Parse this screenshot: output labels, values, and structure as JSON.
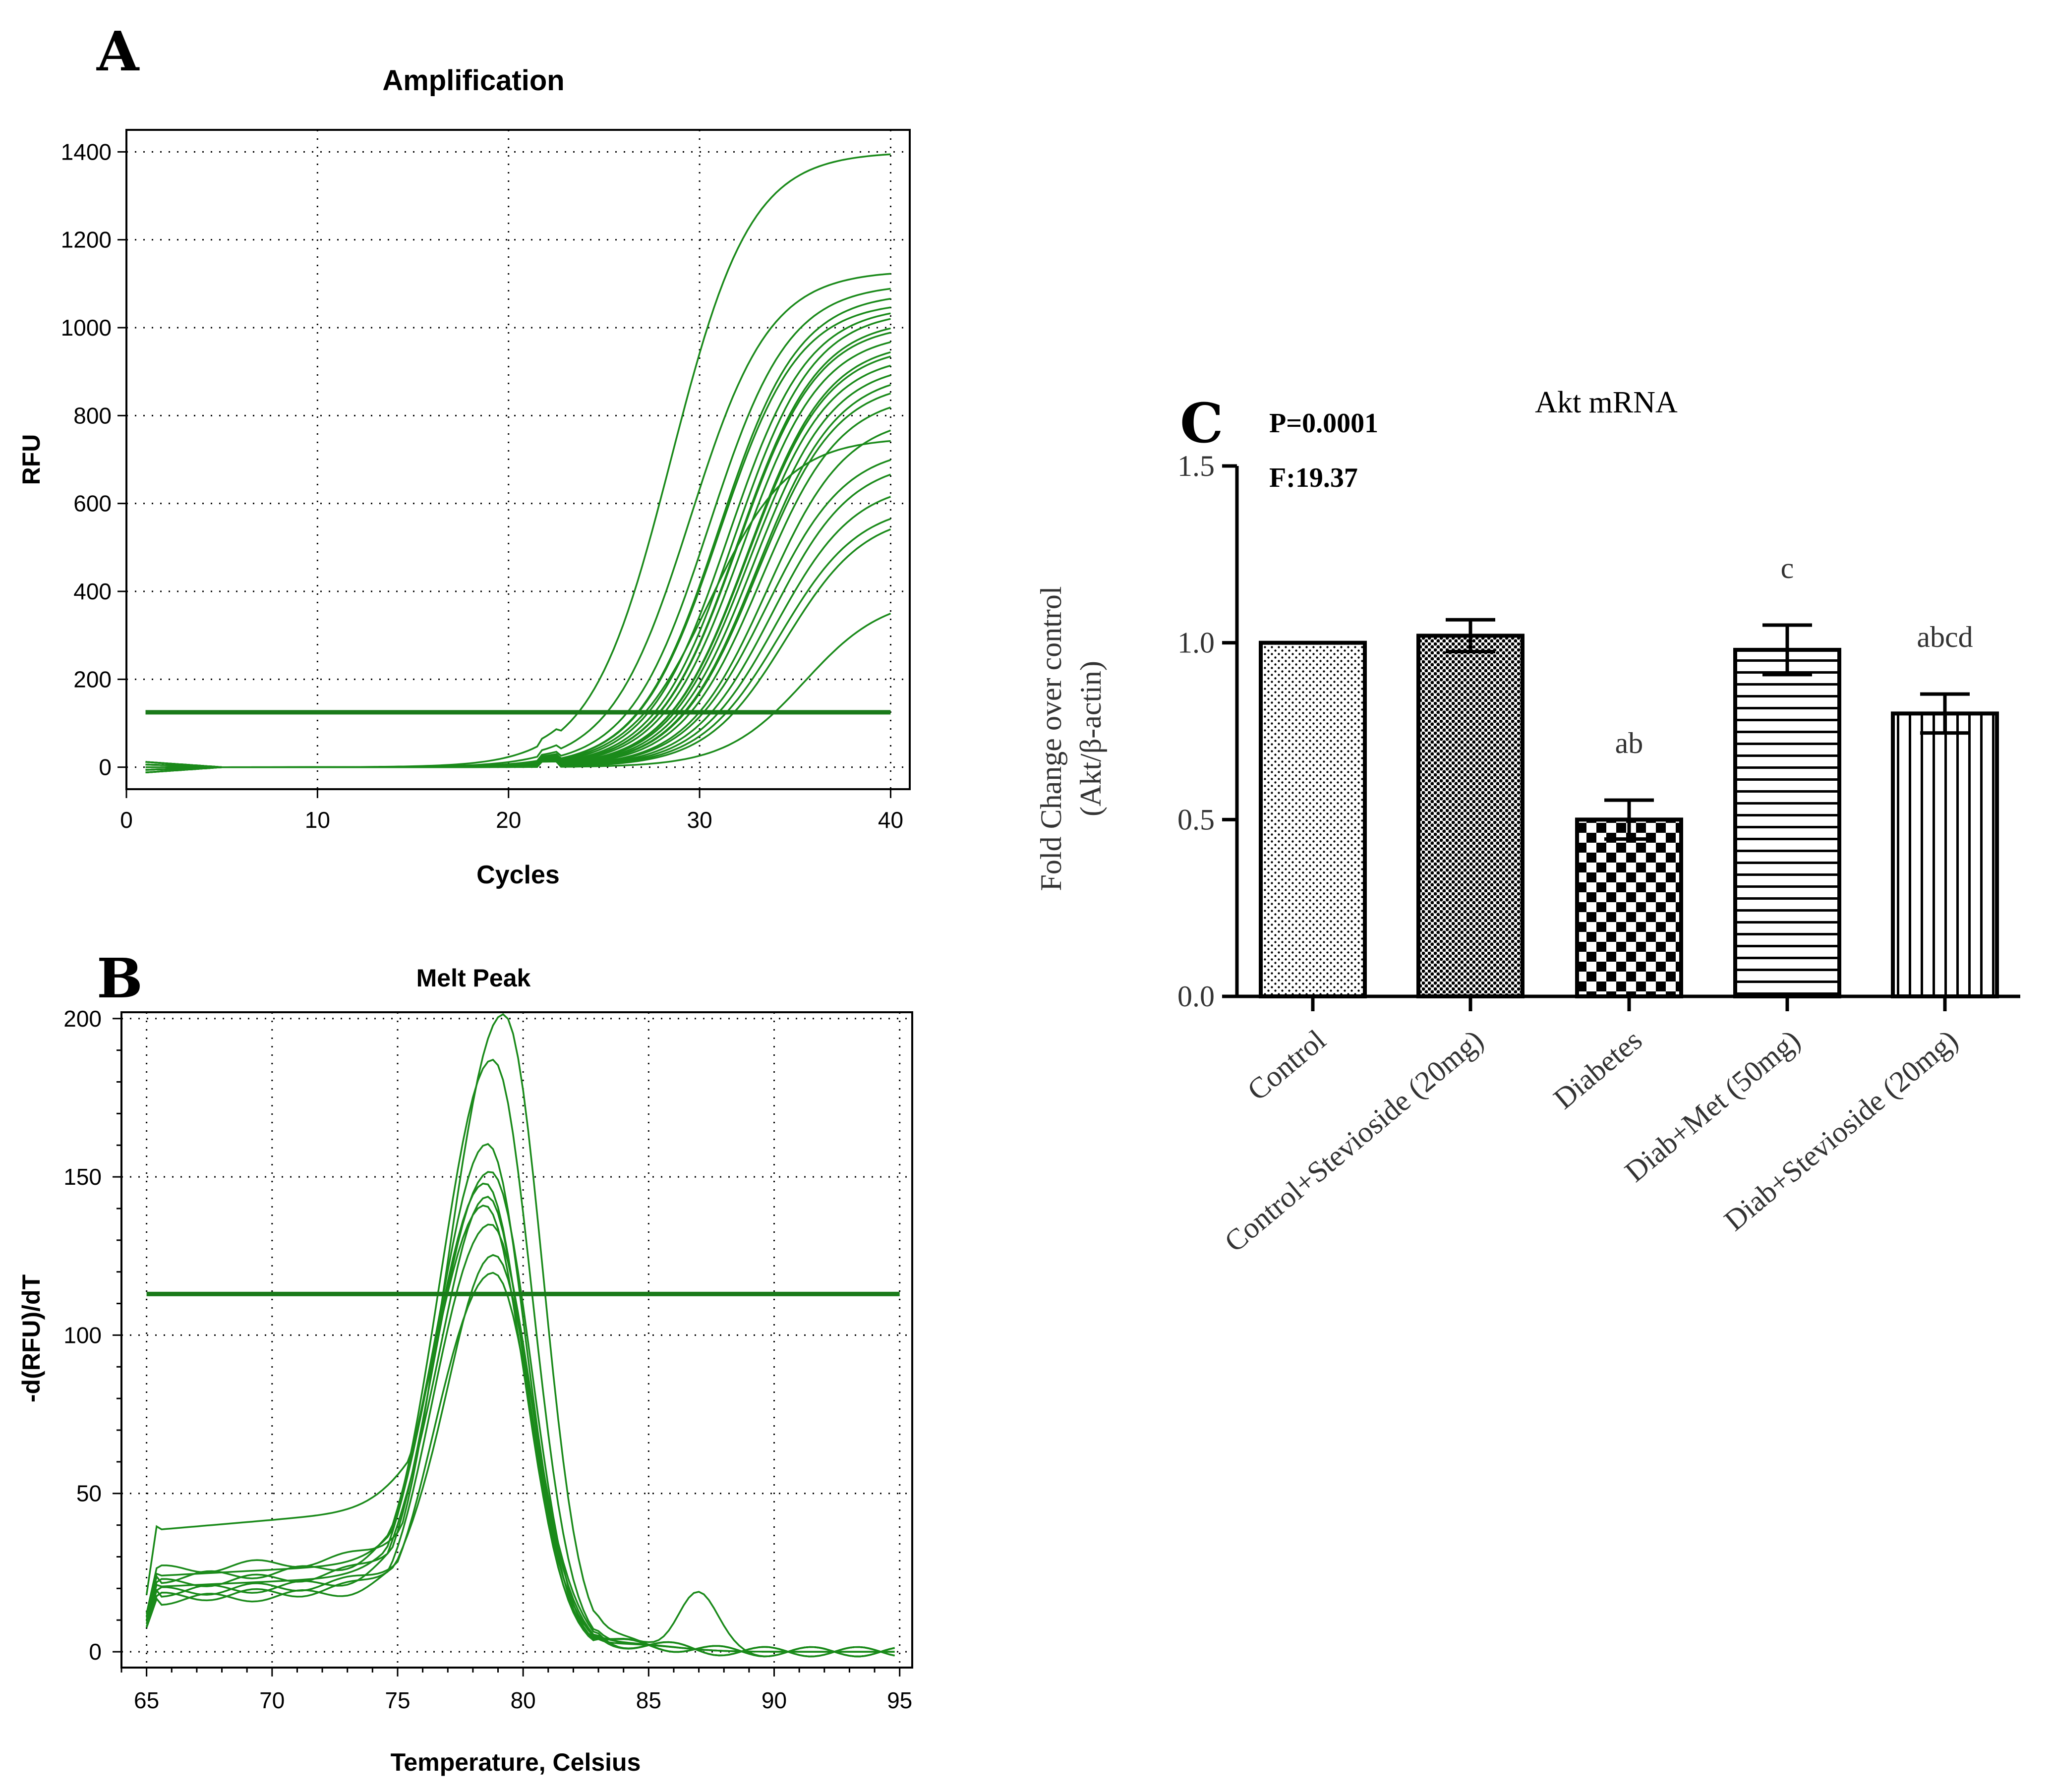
{
  "chart_data": [
    {
      "panel": "A",
      "type": "line",
      "title": "Amplification",
      "xlabel": "Cycles",
      "ylabel": "RFU",
      "xlim": [
        0,
        41
      ],
      "ylim": [
        -50,
        1450
      ],
      "xticks": [
        0,
        10,
        20,
        30,
        40
      ],
      "yticks": [
        0,
        200,
        400,
        600,
        800,
        1000,
        1200,
        1400
      ],
      "grid": true,
      "threshold": 125,
      "series_style": {
        "color": "#1a8a1a"
      },
      "curve_params": [
        [
          28.5,
          1400
        ],
        [
          29.5,
          1130
        ],
        [
          30.5,
          1100
        ],
        [
          31.0,
          1080
        ],
        [
          31.0,
          1060
        ],
        [
          31.5,
          1050
        ],
        [
          31.8,
          1040
        ],
        [
          32.0,
          1020
        ],
        [
          32.0,
          1010
        ],
        [
          32.2,
          990
        ],
        [
          32.5,
          970
        ],
        [
          32.5,
          960
        ],
        [
          32.6,
          940
        ],
        [
          32.8,
          920
        ],
        [
          33.0,
          900
        ],
        [
          33.0,
          880
        ],
        [
          33.2,
          850
        ],
        [
          33.5,
          800
        ],
        [
          30.5,
          750
        ],
        [
          33.5,
          730
        ],
        [
          33.8,
          700
        ],
        [
          34.0,
          650
        ],
        [
          34.2,
          600
        ],
        [
          34.5,
          580
        ],
        [
          35.5,
          390
        ]
      ]
    },
    {
      "panel": "B",
      "type": "line",
      "title": "Melt Peak",
      "xlabel": "Temperature, Celsius",
      "ylabel": "-d(RFU)/dT",
      "xlim": [
        64,
        95.5
      ],
      "ylim": [
        -5,
        202
      ],
      "xticks": [
        65,
        70,
        75,
        80,
        85,
        90,
        95
      ],
      "yticks": [
        0,
        50,
        100,
        150,
        200
      ],
      "grid": true,
      "threshold": 113,
      "series_style": {
        "color": "#1a8a1a"
      },
      "curve_params": [
        [
          193,
          30,
          79.2,
          0
        ],
        [
          178,
          28,
          78.8,
          0
        ],
        [
          150,
          27,
          78.6,
          0
        ],
        [
          145,
          25,
          78.7,
          0
        ],
        [
          140,
          24,
          78.5,
          0
        ],
        [
          135,
          22,
          78.6,
          0
        ],
        [
          130,
          20,
          78.7,
          0
        ],
        [
          126,
          45,
          78.5,
          0
        ],
        [
          118,
          19,
          78.9,
          0
        ],
        [
          114,
          22,
          78.8,
          18
        ]
      ]
    },
    {
      "panel": "C",
      "type": "bar",
      "title": "Akt mRNA",
      "ylabel_line1": "Fold Change over control",
      "ylabel_line2": "(Akt/β-actin)",
      "ylim": [
        0,
        1.5
      ],
      "yticks": [
        "0.0",
        "0.5",
        "1.0",
        "1.5"
      ],
      "stats_p": "P=0.0001",
      "stats_f": "F:19.37",
      "categories": [
        "Control",
        "Control+Stevioside (20mg)",
        "Diabetes",
        "Diab+Met (50mg)",
        "Diab+Stevioside (20mg)"
      ],
      "values": [
        1.0,
        1.02,
        0.5,
        0.98,
        0.8
      ],
      "errors": [
        0.0,
        0.045,
        0.055,
        0.07,
        0.055
      ],
      "annotations": [
        "",
        "",
        "ab",
        "c",
        "abcd"
      ],
      "patterns": [
        "dots",
        "dense-dots",
        "checker",
        "hlines",
        "vlines"
      ]
    }
  ],
  "panel_labels": [
    "A",
    "B",
    "C"
  ]
}
